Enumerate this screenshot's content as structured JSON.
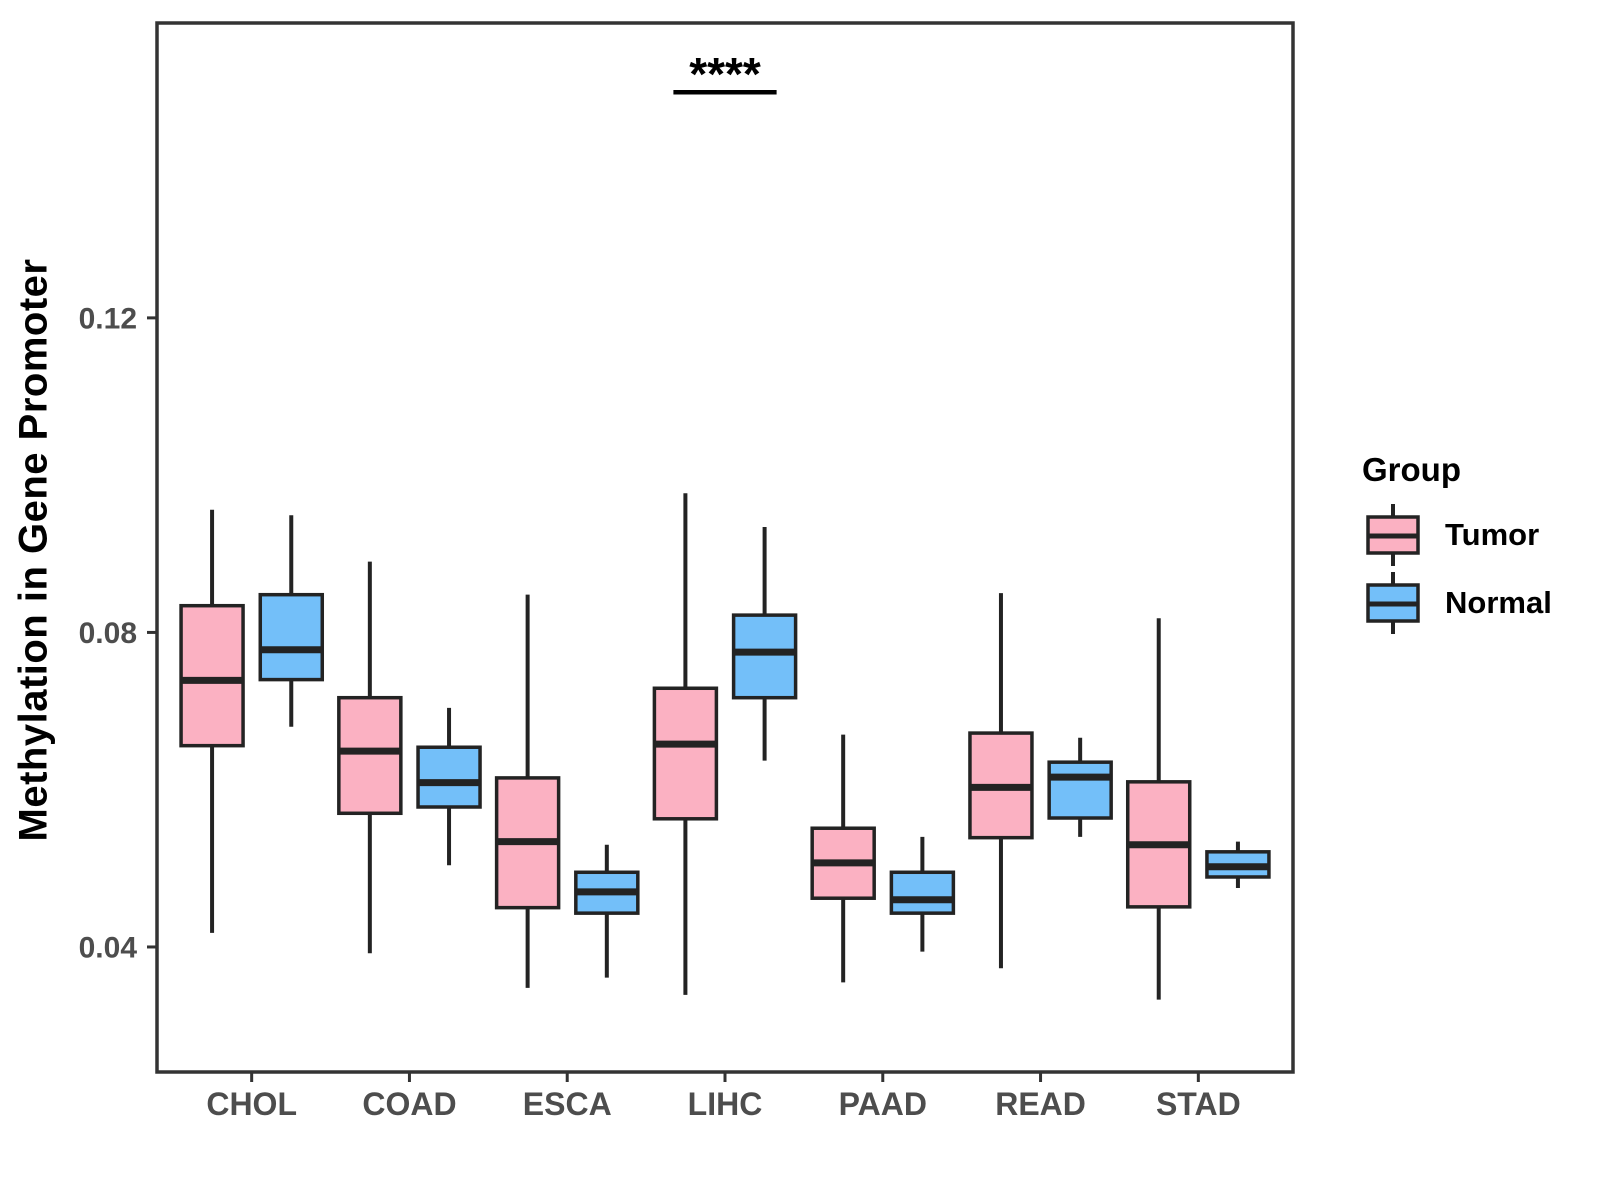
{
  "chart_data": {
    "type": "boxplot",
    "title": "",
    "xlabel": "",
    "ylabel": "Methylation in Gene Promoter",
    "legend_title": "Group",
    "legend_position": "right",
    "grid": false,
    "categories": [
      "CHOL",
      "COAD",
      "ESCA",
      "LIHC",
      "PAAD",
      "READ",
      "STAD"
    ],
    "groups": [
      {
        "name": "Tumor",
        "fill": "#FBB1C2"
      },
      {
        "name": "Normal",
        "fill": "#73BFF9"
      }
    ],
    "ytick_labels": [
      "0.04",
      "0.08",
      "0.12"
    ],
    "ytick_values": [
      0.04,
      0.08,
      0.12
    ],
    "ylim": [
      0.0241,
      0.1575
    ],
    "series": [
      {
        "group": "Tumor",
        "boxes": [
          {
            "category": "CHOL",
            "low": 0.0418,
            "q1": 0.0656,
            "median": 0.0739,
            "q3": 0.0834,
            "high": 0.0956
          },
          {
            "category": "COAD",
            "low": 0.0392,
            "q1": 0.057,
            "median": 0.0649,
            "q3": 0.0717,
            "high": 0.089
          },
          {
            "category": "ESCA",
            "low": 0.0348,
            "q1": 0.045,
            "median": 0.0534,
            "q3": 0.0615,
            "high": 0.0848
          },
          {
            "category": "LIHC",
            "low": 0.0339,
            "q1": 0.0563,
            "median": 0.0658,
            "q3": 0.0729,
            "high": 0.0977
          },
          {
            "category": "PAAD",
            "low": 0.0355,
            "q1": 0.0462,
            "median": 0.0507,
            "q3": 0.0551,
            "high": 0.067
          },
          {
            "category": "READ",
            "low": 0.0373,
            "q1": 0.0539,
            "median": 0.0603,
            "q3": 0.0672,
            "high": 0.085
          },
          {
            "category": "STAD",
            "low": 0.0333,
            "q1": 0.0451,
            "median": 0.053,
            "q3": 0.061,
            "high": 0.0818
          }
        ]
      },
      {
        "group": "Normal",
        "boxes": [
          {
            "category": "CHOL",
            "low": 0.068,
            "q1": 0.074,
            "median": 0.0778,
            "q3": 0.0848,
            "high": 0.0949
          },
          {
            "category": "COAD",
            "low": 0.0504,
            "q1": 0.0578,
            "median": 0.0609,
            "q3": 0.0654,
            "high": 0.0704
          },
          {
            "category": "ESCA",
            "low": 0.0361,
            "q1": 0.0443,
            "median": 0.047,
            "q3": 0.0495,
            "high": 0.053
          },
          {
            "category": "LIHC",
            "low": 0.0637,
            "q1": 0.0717,
            "median": 0.0775,
            "q3": 0.0822,
            "high": 0.0934
          },
          {
            "category": "PAAD",
            "low": 0.0394,
            "q1": 0.0443,
            "median": 0.046,
            "q3": 0.0495,
            "high": 0.054
          },
          {
            "category": "READ",
            "low": 0.054,
            "q1": 0.0564,
            "median": 0.0616,
            "q3": 0.0635,
            "high": 0.0666
          },
          {
            "category": "STAD",
            "low": 0.0475,
            "q1": 0.0489,
            "median": 0.0502,
            "q3": 0.0521,
            "high": 0.0534
          }
        ]
      }
    ],
    "annotation": {
      "text": "****",
      "category": "LIHC",
      "line_y": 0.1487
    },
    "colors": {
      "box_stroke": "#232323",
      "axis": "#333333",
      "tick_text": "#4D4D4D",
      "title_text": "#000000"
    }
  }
}
